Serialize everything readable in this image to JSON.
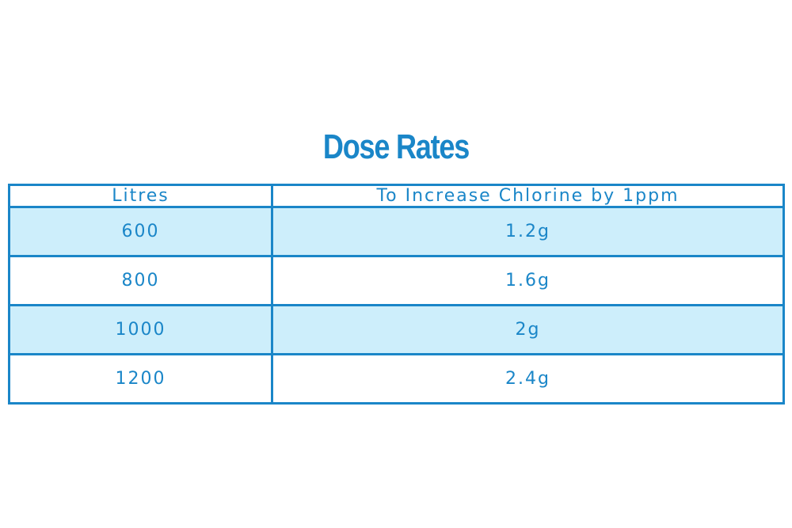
{
  "title": "Dose Rates",
  "colors": {
    "accent": "#1a86c8",
    "text": "#1a86c8",
    "border": "#1a86c8",
    "row_alt_bg": "#cdeefb",
    "row_bg": "#ffffff"
  },
  "table": {
    "headers": [
      "Litres",
      "To Increase Chlorine by 1ppm"
    ],
    "rows": [
      [
        "600",
        "1.2g"
      ],
      [
        "800",
        "1.6g"
      ],
      [
        "1000",
        "2g"
      ],
      [
        "1200",
        "2.4g"
      ]
    ]
  }
}
